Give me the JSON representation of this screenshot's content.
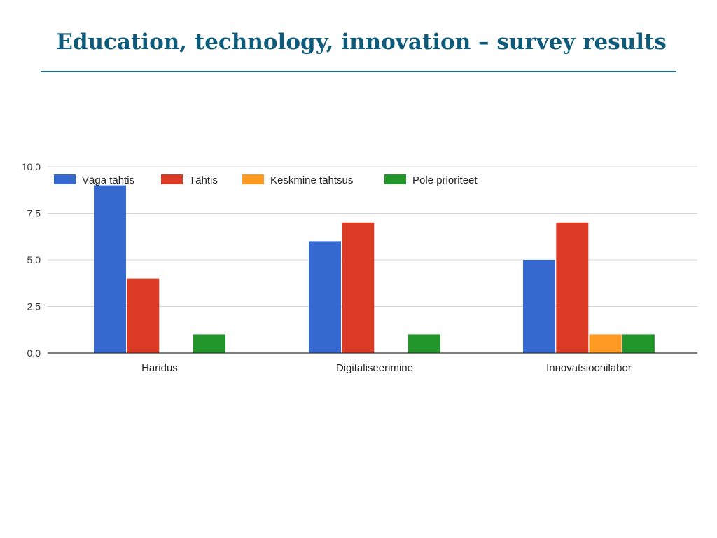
{
  "slide": {
    "title": "Education, technology, innovation – survey results"
  },
  "chart_data": {
    "type": "bar",
    "title": "",
    "xlabel": "",
    "ylabel": "",
    "categories": [
      "Haridus",
      "Digitaliseerimine",
      "Innovatsioonilabor"
    ],
    "series": [
      {
        "name": "Väga tähtis",
        "color": "#3669cf",
        "values": [
          9,
          6,
          5
        ]
      },
      {
        "name": "Tähtis",
        "color": "#db3b24",
        "values": [
          4,
          7,
          7
        ]
      },
      {
        "name": "Keskmine tähtsus",
        "color": "#fe9a22",
        "values": [
          0,
          0,
          1
        ]
      },
      {
        "name": "Pole prioriteet",
        "color": "#23962b",
        "values": [
          1,
          1,
          1
        ]
      }
    ],
    "ylim": [
      0,
      10
    ],
    "yticks": [
      "0,0",
      "2,5",
      "5,0",
      "7,5",
      "10,0"
    ],
    "yticks_values": [
      0,
      2.5,
      5,
      7.5,
      10
    ],
    "grid": true,
    "legend": "top-left, inside plot"
  }
}
